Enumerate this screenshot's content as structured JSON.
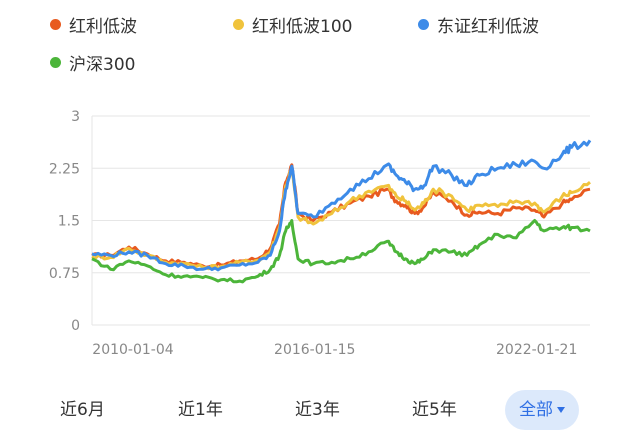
{
  "legend": [
    {
      "label": "红利低波",
      "color": "#e85a1f"
    },
    {
      "label": "红利低波100",
      "color": "#f0c33c"
    },
    {
      "label": "东证红利低波",
      "color": "#3d8be8"
    },
    {
      "label": "沪深300",
      "color": "#4cb53a"
    }
  ],
  "range_tabs": {
    "m6": "近6月",
    "y1": "近1年",
    "y3": "近3年",
    "y5": "近5年",
    "all": "全部"
  },
  "chart_data": {
    "type": "line",
    "ylim": [
      0,
      3
    ],
    "yticks": [
      "0",
      "0.75",
      "1.5",
      "2.25",
      "3"
    ],
    "xticks": [
      "2010-01-04",
      "2016-01-15",
      "2022-01-21"
    ],
    "x": [
      "2010-01",
      "2010-07",
      "2011-01",
      "2011-07",
      "2012-01",
      "2012-07",
      "2013-01",
      "2013-07",
      "2014-01",
      "2014-07",
      "2014-11",
      "2015-02",
      "2015-04",
      "2015-06",
      "2015-08",
      "2016-01",
      "2016-07",
      "2017-01",
      "2017-07",
      "2018-01",
      "2018-04",
      "2018-07",
      "2018-10",
      "2019-01",
      "2019-04",
      "2019-10",
      "2020-03",
      "2020-07",
      "2021-01",
      "2021-07",
      "2022-01",
      "2022-04",
      "2022-10",
      "2023-01",
      "2023-07"
    ],
    "series": [
      {
        "name": "红利低波",
        "color": "#e85a1f",
        "values": [
          1.0,
          1.0,
          1.12,
          1.02,
          0.92,
          0.9,
          0.85,
          0.86,
          0.92,
          0.95,
          1.1,
          1.45,
          2.05,
          2.3,
          1.6,
          1.5,
          1.62,
          1.75,
          1.85,
          1.95,
          1.78,
          1.72,
          1.6,
          1.7,
          1.9,
          1.78,
          1.58,
          1.62,
          1.6,
          1.68,
          1.65,
          1.55,
          1.75,
          1.8,
          1.95
        ]
      },
      {
        "name": "红利低波100",
        "color": "#f0c33c",
        "values": [
          0.98,
          0.97,
          1.1,
          1.0,
          0.9,
          0.88,
          0.83,
          0.84,
          0.9,
          0.93,
          1.05,
          1.4,
          2.0,
          2.25,
          1.55,
          1.45,
          1.6,
          1.78,
          1.92,
          2.0,
          1.85,
          1.78,
          1.65,
          1.75,
          1.95,
          1.85,
          1.65,
          1.72,
          1.7,
          1.78,
          1.75,
          1.62,
          1.85,
          1.9,
          2.05
        ]
      },
      {
        "name": "东证红利低波",
        "color": "#3d8be8",
        "values": [
          1.02,
          1.0,
          1.05,
          1.0,
          0.88,
          0.85,
          0.8,
          0.82,
          0.86,
          0.9,
          1.0,
          1.35,
          1.95,
          2.28,
          1.6,
          1.55,
          1.75,
          1.95,
          2.1,
          2.3,
          2.15,
          2.05,
          1.95,
          2.0,
          2.28,
          2.15,
          2.0,
          2.15,
          2.25,
          2.3,
          2.35,
          2.25,
          2.45,
          2.55,
          2.65
        ]
      },
      {
        "name": "沪深300",
        "color": "#4cb53a",
        "values": [
          0.95,
          0.8,
          0.92,
          0.85,
          0.72,
          0.7,
          0.68,
          0.65,
          0.63,
          0.7,
          0.8,
          1.0,
          1.35,
          1.5,
          0.95,
          0.88,
          0.9,
          0.95,
          1.05,
          1.2,
          1.05,
          0.95,
          0.88,
          0.95,
          1.08,
          1.05,
          1.0,
          1.15,
          1.3,
          1.25,
          1.5,
          1.35,
          1.4,
          1.4,
          1.35
        ]
      }
    ]
  }
}
